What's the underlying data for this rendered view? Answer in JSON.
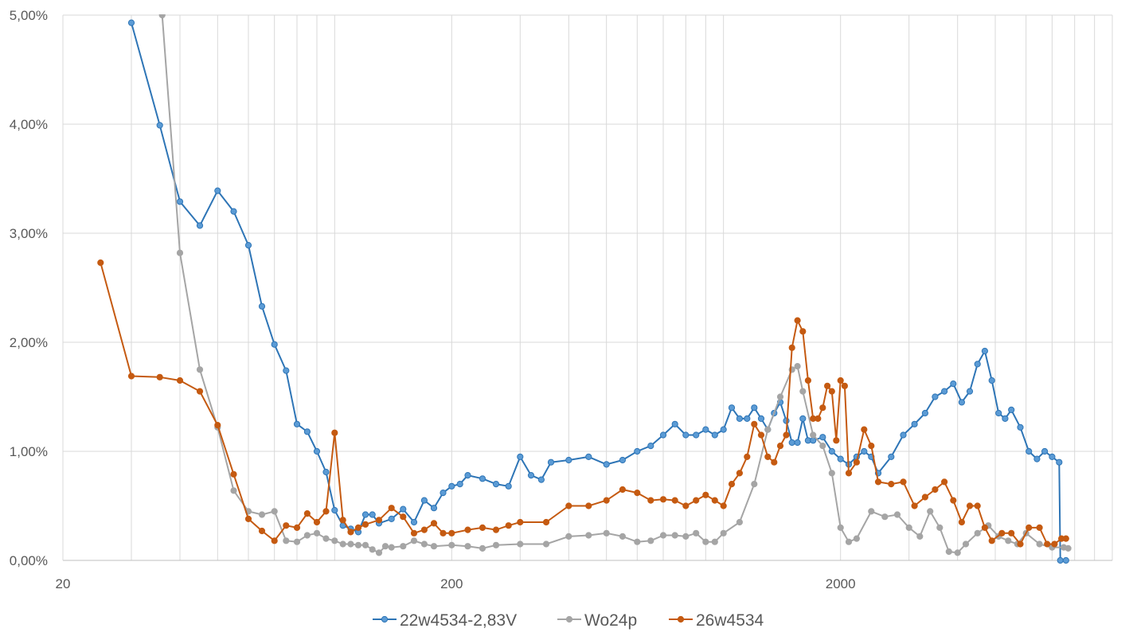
{
  "chart_data": {
    "type": "line",
    "x_scale": "log",
    "xlim": [
      20,
      10000
    ],
    "ylim": [
      0,
      5
    ],
    "y_unit": "%",
    "grid": true,
    "legend_position": "bottom",
    "x_tick_labels": [
      "20",
      "200",
      "2000"
    ],
    "x_tick_values": [
      20,
      200,
      2000
    ],
    "y_tick_labels": [
      "0,00%",
      "1,00%",
      "2,00%",
      "3,00%",
      "4,00%",
      "5,00%"
    ],
    "y_tick_values": [
      0,
      1,
      2,
      3,
      4,
      5
    ],
    "series": [
      {
        "name": "22w4534-2,83V",
        "color": "#2e75b6",
        "marker_fill": "#5b9bd5",
        "points": [
          [
            30,
            4.93
          ],
          [
            35.5,
            3.99
          ],
          [
            40,
            3.29
          ],
          [
            45,
            3.07
          ],
          [
            50,
            3.39
          ],
          [
            55,
            3.2
          ],
          [
            60,
            2.89
          ],
          [
            65,
            2.33
          ],
          [
            70,
            1.98
          ],
          [
            75,
            1.74
          ],
          [
            80,
            1.25
          ],
          [
            85,
            1.18
          ],
          [
            90,
            1.0
          ],
          [
            95,
            0.81
          ],
          [
            100,
            0.46
          ],
          [
            105,
            0.32
          ],
          [
            110,
            0.29
          ],
          [
            115,
            0.26
          ],
          [
            120,
            0.42
          ],
          [
            125,
            0.42
          ],
          [
            130,
            0.34
          ],
          [
            140,
            0.38
          ],
          [
            150,
            0.47
          ],
          [
            160,
            0.35
          ],
          [
            170,
            0.55
          ],
          [
            180,
            0.48
          ],
          [
            190,
            0.62
          ],
          [
            200,
            0.68
          ],
          [
            210,
            0.7
          ],
          [
            220,
            0.78
          ],
          [
            240,
            0.75
          ],
          [
            260,
            0.7
          ],
          [
            280,
            0.68
          ],
          [
            300,
            0.95
          ],
          [
            320,
            0.78
          ],
          [
            340,
            0.74
          ],
          [
            360,
            0.9
          ],
          [
            400,
            0.92
          ],
          [
            450,
            0.95
          ],
          [
            500,
            0.88
          ],
          [
            550,
            0.92
          ],
          [
            600,
            1.0
          ],
          [
            650,
            1.05
          ],
          [
            700,
            1.15
          ],
          [
            750,
            1.25
          ],
          [
            800,
            1.15
          ],
          [
            850,
            1.15
          ],
          [
            900,
            1.2
          ],
          [
            950,
            1.15
          ],
          [
            1000,
            1.2
          ],
          [
            1050,
            1.4
          ],
          [
            1100,
            1.3
          ],
          [
            1150,
            1.3
          ],
          [
            1200,
            1.4
          ],
          [
            1250,
            1.3
          ],
          [
            1300,
            1.2
          ],
          [
            1350,
            1.35
          ],
          [
            1400,
            1.45
          ],
          [
            1450,
            1.28
          ],
          [
            1500,
            1.08
          ],
          [
            1550,
            1.08
          ],
          [
            1600,
            1.3
          ],
          [
            1650,
            1.1
          ],
          [
            1700,
            1.1
          ],
          [
            1800,
            1.13
          ],
          [
            1900,
            1.0
          ],
          [
            2000,
            0.93
          ],
          [
            2100,
            0.88
          ],
          [
            2200,
            0.95
          ],
          [
            2300,
            1.0
          ],
          [
            2400,
            0.95
          ],
          [
            2500,
            0.8
          ],
          [
            2700,
            0.95
          ],
          [
            2900,
            1.15
          ],
          [
            3100,
            1.25
          ],
          [
            3300,
            1.35
          ],
          [
            3500,
            1.5
          ],
          [
            3700,
            1.55
          ],
          [
            3900,
            1.62
          ],
          [
            4100,
            1.45
          ],
          [
            4300,
            1.55
          ],
          [
            4500,
            1.8
          ],
          [
            4700,
            1.92
          ],
          [
            4900,
            1.65
          ],
          [
            5100,
            1.35
          ],
          [
            5300,
            1.3
          ],
          [
            5500,
            1.38
          ],
          [
            5800,
            1.22
          ],
          [
            6100,
            1.0
          ],
          [
            6400,
            0.93
          ],
          [
            6700,
            1.0
          ],
          [
            7000,
            0.95
          ],
          [
            7300,
            0.9
          ],
          [
            7350,
            0.0
          ],
          [
            7600,
            0.0
          ]
        ]
      },
      {
        "name": "Wo24p",
        "color": "#a5a5a5",
        "marker_fill": "#a5a5a5",
        "points": [
          [
            36,
            5.0
          ],
          [
            40,
            2.82
          ],
          [
            45,
            1.75
          ],
          [
            50,
            1.22
          ],
          [
            55,
            0.64
          ],
          [
            60,
            0.45
          ],
          [
            65,
            0.42
          ],
          [
            70,
            0.45
          ],
          [
            75,
            0.18
          ],
          [
            80,
            0.17
          ],
          [
            85,
            0.23
          ],
          [
            90,
            0.25
          ],
          [
            95,
            0.2
          ],
          [
            100,
            0.18
          ],
          [
            105,
            0.15
          ],
          [
            110,
            0.15
          ],
          [
            115,
            0.14
          ],
          [
            120,
            0.14
          ],
          [
            125,
            0.1
          ],
          [
            130,
            0.07
          ],
          [
            135,
            0.13
          ],
          [
            140,
            0.12
          ],
          [
            150,
            0.13
          ],
          [
            160,
            0.18
          ],
          [
            170,
            0.15
          ],
          [
            180,
            0.13
          ],
          [
            200,
            0.14
          ],
          [
            220,
            0.13
          ],
          [
            240,
            0.11
          ],
          [
            260,
            0.14
          ],
          [
            300,
            0.15
          ],
          [
            350,
            0.15
          ],
          [
            400,
            0.22
          ],
          [
            450,
            0.23
          ],
          [
            500,
            0.25
          ],
          [
            550,
            0.22
          ],
          [
            600,
            0.17
          ],
          [
            650,
            0.18
          ],
          [
            700,
            0.23
          ],
          [
            750,
            0.23
          ],
          [
            800,
            0.22
          ],
          [
            850,
            0.25
          ],
          [
            900,
            0.17
          ],
          [
            950,
            0.17
          ],
          [
            1000,
            0.25
          ],
          [
            1100,
            0.35
          ],
          [
            1200,
            0.7
          ],
          [
            1300,
            1.2
          ],
          [
            1400,
            1.5
          ],
          [
            1500,
            1.75
          ],
          [
            1550,
            1.78
          ],
          [
            1600,
            1.55
          ],
          [
            1700,
            1.15
          ],
          [
            1800,
            1.05
          ],
          [
            1900,
            0.8
          ],
          [
            2000,
            0.3
          ],
          [
            2100,
            0.17
          ],
          [
            2200,
            0.2
          ],
          [
            2400,
            0.45
          ],
          [
            2600,
            0.4
          ],
          [
            2800,
            0.42
          ],
          [
            3000,
            0.3
          ],
          [
            3200,
            0.22
          ],
          [
            3400,
            0.45
          ],
          [
            3600,
            0.3
          ],
          [
            3800,
            0.08
          ],
          [
            4000,
            0.07
          ],
          [
            4200,
            0.15
          ],
          [
            4500,
            0.25
          ],
          [
            4800,
            0.32
          ],
          [
            5100,
            0.22
          ],
          [
            5400,
            0.18
          ],
          [
            5700,
            0.15
          ],
          [
            6000,
            0.25
          ],
          [
            6500,
            0.15
          ],
          [
            7000,
            0.12
          ],
          [
            7500,
            0.12
          ],
          [
            7700,
            0.11
          ]
        ]
      },
      {
        "name": "26w4534",
        "color": "#c55a11",
        "marker_fill": "#c55a11",
        "points": [
          [
            25,
            2.73
          ],
          [
            30,
            1.69
          ],
          [
            35.5,
            1.68
          ],
          [
            40,
            1.65
          ],
          [
            45,
            1.55
          ],
          [
            50,
            1.24
          ],
          [
            55,
            0.79
          ],
          [
            60,
            0.38
          ],
          [
            65,
            0.27
          ],
          [
            70,
            0.18
          ],
          [
            75,
            0.32
          ],
          [
            80,
            0.3
          ],
          [
            85,
            0.43
          ],
          [
            90,
            0.35
          ],
          [
            95,
            0.45
          ],
          [
            100,
            1.17
          ],
          [
            105,
            0.37
          ],
          [
            110,
            0.26
          ],
          [
            115,
            0.3
          ],
          [
            120,
            0.33
          ],
          [
            130,
            0.37
          ],
          [
            140,
            0.48
          ],
          [
            150,
            0.4
          ],
          [
            160,
            0.25
          ],
          [
            170,
            0.28
          ],
          [
            180,
            0.34
          ],
          [
            190,
            0.25
          ],
          [
            200,
            0.25
          ],
          [
            220,
            0.28
          ],
          [
            240,
            0.3
          ],
          [
            260,
            0.28
          ],
          [
            280,
            0.32
          ],
          [
            300,
            0.35
          ],
          [
            350,
            0.35
          ],
          [
            400,
            0.5
          ],
          [
            450,
            0.5
          ],
          [
            500,
            0.55
          ],
          [
            550,
            0.65
          ],
          [
            600,
            0.62
          ],
          [
            650,
            0.55
          ],
          [
            700,
            0.56
          ],
          [
            750,
            0.55
          ],
          [
            800,
            0.5
          ],
          [
            850,
            0.55
          ],
          [
            900,
            0.6
          ],
          [
            950,
            0.55
          ],
          [
            1000,
            0.5
          ],
          [
            1050,
            0.7
          ],
          [
            1100,
            0.8
          ],
          [
            1150,
            0.95
          ],
          [
            1200,
            1.25
          ],
          [
            1250,
            1.15
          ],
          [
            1300,
            0.95
          ],
          [
            1350,
            0.9
          ],
          [
            1400,
            1.05
          ],
          [
            1450,
            1.15
          ],
          [
            1500,
            1.95
          ],
          [
            1550,
            2.2
          ],
          [
            1600,
            2.1
          ],
          [
            1650,
            1.65
          ],
          [
            1700,
            1.3
          ],
          [
            1750,
            1.3
          ],
          [
            1800,
            1.4
          ],
          [
            1850,
            1.6
          ],
          [
            1900,
            1.55
          ],
          [
            1950,
            1.1
          ],
          [
            2000,
            1.65
          ],
          [
            2050,
            1.6
          ],
          [
            2100,
            0.8
          ],
          [
            2200,
            0.9
          ],
          [
            2300,
            1.2
          ],
          [
            2400,
            1.05
          ],
          [
            2500,
            0.72
          ],
          [
            2700,
            0.7
          ],
          [
            2900,
            0.72
          ],
          [
            3100,
            0.5
          ],
          [
            3300,
            0.58
          ],
          [
            3500,
            0.65
          ],
          [
            3700,
            0.72
          ],
          [
            3900,
            0.55
          ],
          [
            4100,
            0.35
          ],
          [
            4300,
            0.5
          ],
          [
            4500,
            0.5
          ],
          [
            4700,
            0.3
          ],
          [
            4900,
            0.18
          ],
          [
            5200,
            0.25
          ],
          [
            5500,
            0.25
          ],
          [
            5800,
            0.15
          ],
          [
            6100,
            0.3
          ],
          [
            6500,
            0.3
          ],
          [
            6800,
            0.15
          ],
          [
            7100,
            0.15
          ],
          [
            7400,
            0.2
          ],
          [
            7600,
            0.2
          ]
        ]
      }
    ]
  }
}
